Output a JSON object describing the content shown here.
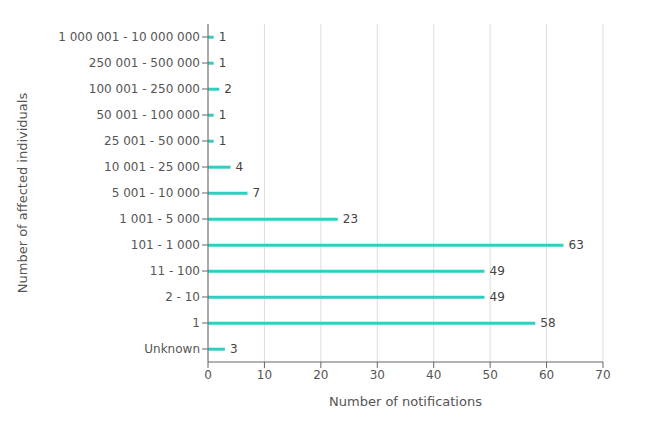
{
  "chart_data": {
    "type": "bar",
    "orientation": "horizontal",
    "categories": [
      "Unknown",
      "1",
      "2 - 10",
      "11 - 100",
      "101 - 1 000",
      "1 001 - 5 000",
      "5 001 - 10 000",
      "10 001 - 25 000",
      "25 001 - 50 000",
      "50 001 - 100 000",
      "100 001 - 250 000",
      "250 001 - 500 000",
      "1 000 001 - 10 000 000"
    ],
    "values": [
      3,
      58,
      49,
      49,
      63,
      23,
      7,
      4,
      1,
      1,
      2,
      1,
      1
    ],
    "color": "#2ecfbe",
    "xlabel": "Number of notifications",
    "ylabel": "Number of affected individuals",
    "xlim": [
      0,
      70
    ],
    "xticks": [
      0,
      10,
      20,
      30,
      40,
      50,
      60,
      70
    ],
    "grid": true,
    "data_labels": true
  }
}
